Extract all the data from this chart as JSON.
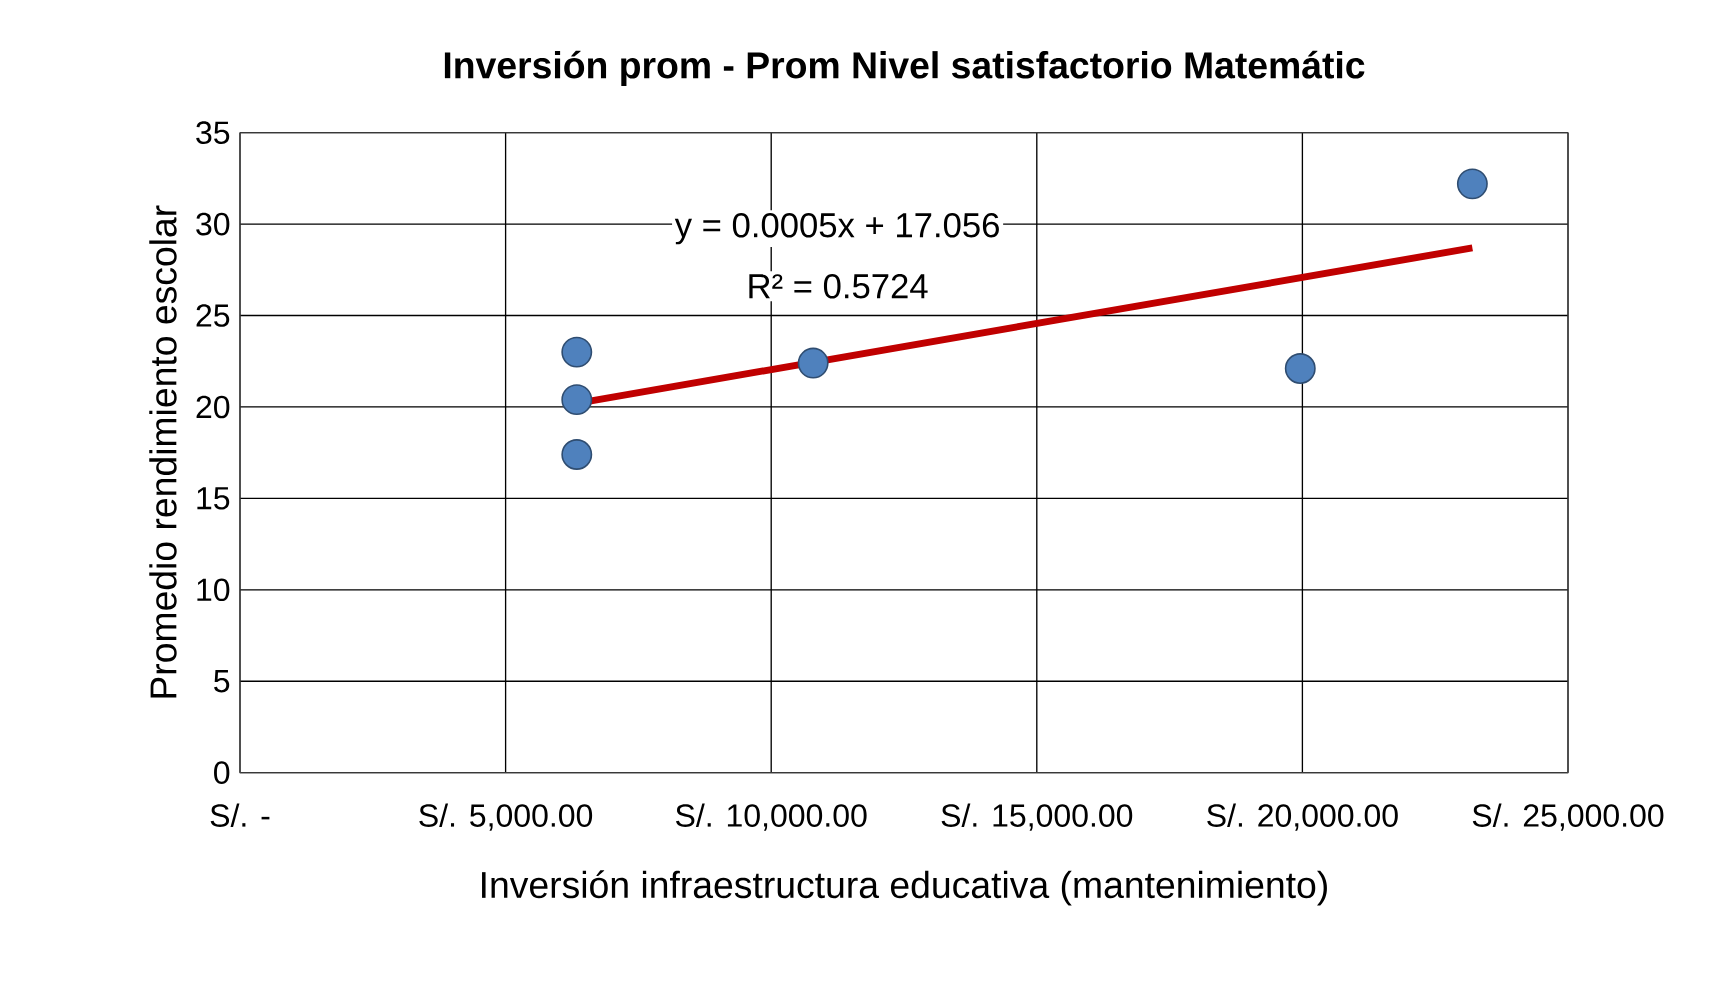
{
  "chart_data": {
    "type": "scatter",
    "title": "Inversión prom -  Prom  Nivel satisfactorio Matemátic",
    "xlabel": "Inversión infraestructura educativa (mantenimiento)",
    "ylabel": "Promedio rendimiento escolar",
    "series": [
      {
        "color": "#4f81bd",
        "marker": "circle",
        "x": [
          6340,
          6340,
          6340,
          10790,
          19960,
          23200
        ],
        "values": [
          23.0,
          20.4,
          17.4,
          22.4,
          22.1,
          32.2
        ]
      },
      {
        "type": "line",
        "color": "#c00000",
        "x": [
          6340,
          23200
        ],
        "values": [
          20.2,
          28.7
        ],
        "marker": "none"
      }
    ],
    "annotations": [
      "y = 0.0005x + 17.056",
      "R² = 0.5724"
    ],
    "xlim": [
      0,
      25000
    ],
    "ylim": [
      0,
      35
    ],
    "xticks": [
      {
        "value": 0,
        "label": "S/. -"
      },
      {
        "value": 5000,
        "label": "S/. 5,000.00"
      },
      {
        "value": 10000,
        "label": "S/. 10,000.00"
      },
      {
        "value": 15000,
        "label": "S/. 15,000.00"
      },
      {
        "value": 20000,
        "label": "S/. 20,000.00"
      },
      {
        "value": 25000,
        "label": "S/. 25,000.00"
      }
    ],
    "yticks": [
      0,
      5,
      10,
      15,
      20,
      25,
      30,
      35
    ],
    "grid": true
  }
}
